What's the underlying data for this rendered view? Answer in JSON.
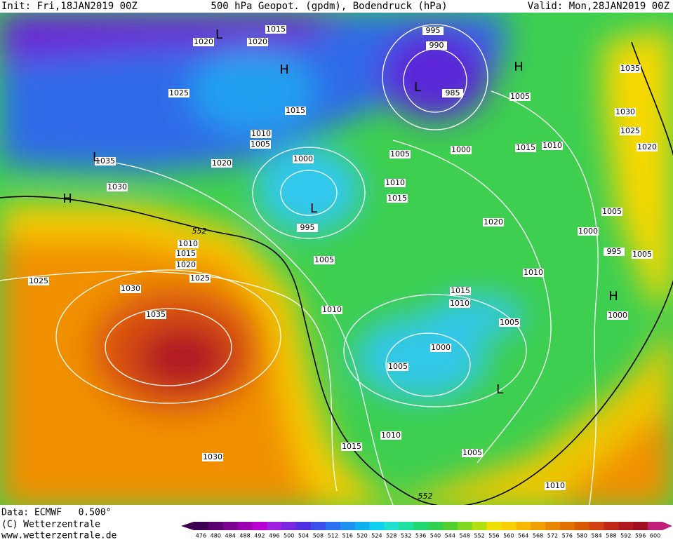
{
  "header": {
    "init": "Init: Fri,18JAN2019 00Z",
    "title": "500 hPa Geopot. (gpdm), Bodendruck (hPa)",
    "valid": "Valid: Mon,28JAN2019 00Z"
  },
  "isobar_labels": [
    1020,
    1015,
    1020,
    995,
    990,
    985,
    1035,
    1025,
    1015,
    1005,
    1030,
    1010,
    1005,
    1025,
    1005,
    1000,
    1015,
    1010,
    1020,
    1000,
    1020,
    1035,
    1030,
    1010,
    1015,
    1005,
    995,
    1020,
    1000,
    1010,
    995,
    1005,
    1015,
    1020,
    1005,
    1010,
    1025,
    1025,
    1030,
    1015,
    1010,
    1010,
    1035,
    1000,
    1005,
    1000,
    1005,
    1010,
    1015,
    1005,
    1030,
    1010
  ],
  "geopotential_labels": [
    552,
    552
  ],
  "pressure_centers": [
    "L",
    "H",
    "H",
    "L",
    "L",
    "H",
    "L",
    "H",
    "L"
  ],
  "footer": {
    "data": "Data: ECMWF   0.500°",
    "copyright": "(C) Wetterzentrale",
    "url": "www.wetterzentrale.de"
  },
  "legend": {
    "values": [
      476,
      480,
      484,
      488,
      492,
      496,
      500,
      504,
      508,
      512,
      516,
      520,
      524,
      528,
      532,
      536,
      540,
      544,
      548,
      552,
      556,
      560,
      564,
      568,
      572,
      576,
      580,
      584,
      588,
      592,
      596,
      600
    ],
    "colors": [
      "#3c0050",
      "#5a0070",
      "#7a0090",
      "#9a00b0",
      "#b800d0",
      "#a020e0",
      "#7a28e0",
      "#5030e0",
      "#3a50e8",
      "#2a70f0",
      "#2090f0",
      "#10b0f0",
      "#10d0f0",
      "#20e0d0",
      "#20e0a0",
      "#20d870",
      "#30d050",
      "#50d030",
      "#80d820",
      "#b0e010",
      "#f0e000",
      "#f8d000",
      "#f8b800",
      "#f0a000",
      "#e88800",
      "#e07000",
      "#d85a00",
      "#d04010",
      "#c02818",
      "#b01820",
      "#a01020",
      "#c0207a"
    ]
  }
}
